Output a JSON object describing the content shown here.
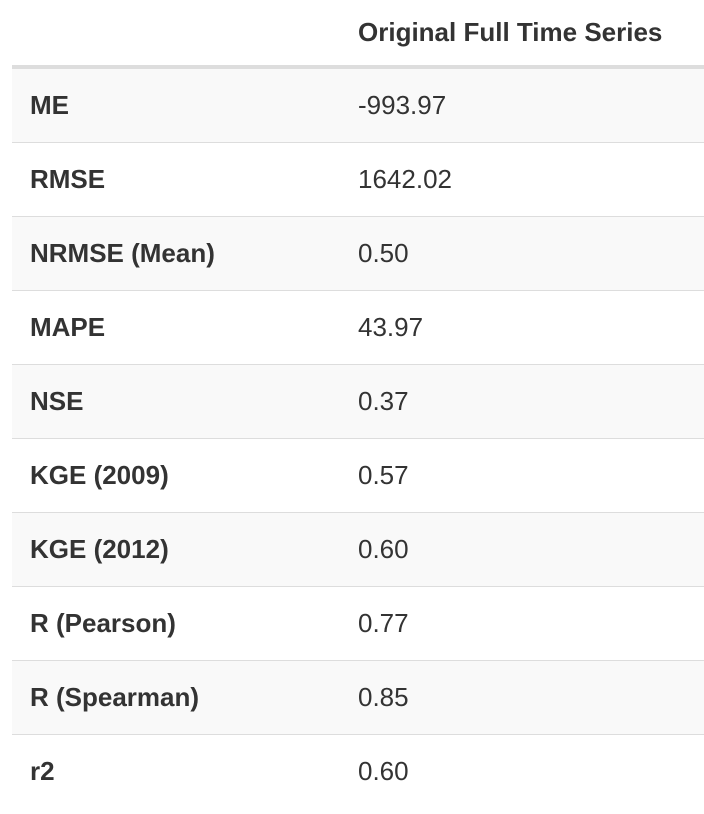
{
  "table": {
    "header": {
      "metric": "",
      "value": "Original Full Time Series"
    },
    "rows": [
      {
        "metric": "ME",
        "value": "-993.97"
      },
      {
        "metric": "RMSE",
        "value": "1642.02"
      },
      {
        "metric": "NRMSE (Mean)",
        "value": "0.50"
      },
      {
        "metric": "MAPE",
        "value": "43.97"
      },
      {
        "metric": "NSE",
        "value": "0.37"
      },
      {
        "metric": "KGE (2009)",
        "value": "0.57"
      },
      {
        "metric": "KGE (2012)",
        "value": "0.60"
      },
      {
        "metric": "R (Pearson)",
        "value": "0.77"
      },
      {
        "metric": "R (Spearman)",
        "value": "0.85"
      },
      {
        "metric": "r2",
        "value": "0.60"
      }
    ],
    "colors": {
      "stripe": "#f9f9f9",
      "border": "#dddddd",
      "text": "#333333"
    }
  }
}
